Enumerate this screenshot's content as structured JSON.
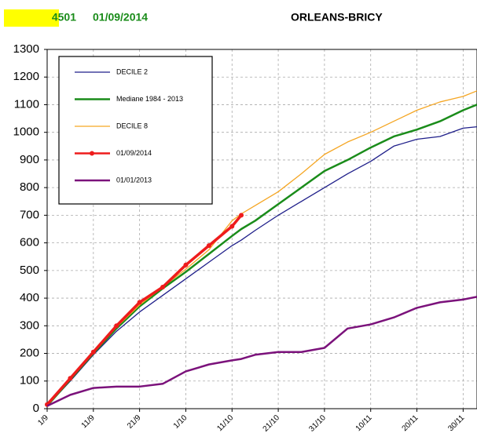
{
  "header": {
    "code": "4501",
    "date": "01/09/2014",
    "station": "ORLEANS-BRICY"
  },
  "chart_data": {
    "type": "line",
    "x": [
      0,
      5,
      10,
      15,
      20,
      25,
      30,
      35,
      40,
      42,
      45,
      50,
      55,
      60,
      65,
      70,
      75,
      80,
      85,
      90,
      93
    ],
    "xlim": [
      0,
      93
    ],
    "xticks": [
      {
        "value": 0,
        "label": "1/9"
      },
      {
        "value": 10,
        "label": "11/9"
      },
      {
        "value": 20,
        "label": "21/9"
      },
      {
        "value": 30,
        "label": "1/10"
      },
      {
        "value": 40,
        "label": "11/10"
      },
      {
        "value": 50,
        "label": "21/10"
      },
      {
        "value": 60,
        "label": "31/10"
      },
      {
        "value": 70,
        "label": "10/11"
      },
      {
        "value": 80,
        "label": "20/11"
      },
      {
        "value": 90,
        "label": "30/11"
      }
    ],
    "ylim": [
      0,
      1300
    ],
    "yticks": [
      0,
      100,
      200,
      300,
      400,
      500,
      600,
      700,
      800,
      900,
      1000,
      1100,
      1200,
      1300
    ],
    "grid": true,
    "legend": "top-left",
    "series": [
      {
        "name": "DECILE 2",
        "color": "#1f1f8a",
        "width": 1.3,
        "values": [
          10,
          100,
          195,
          280,
          350,
          410,
          470,
          530,
          590,
          610,
          645,
          700,
          750,
          800,
          850,
          895,
          950,
          975,
          985,
          1015,
          1020
        ]
      },
      {
        "name": "Mediane 1984 - 2013",
        "color": "#1a8c1a",
        "width": 2.5,
        "values": [
          10,
          105,
          200,
          290,
          370,
          435,
          495,
          560,
          625,
          650,
          680,
          740,
          800,
          860,
          900,
          945,
          985,
          1010,
          1040,
          1080,
          1100
        ]
      },
      {
        "name": "DECILE 8",
        "color": "#f5a623",
        "width": 1.3,
        "values": [
          10,
          108,
          205,
          295,
          375,
          440,
          505,
          575,
          680,
          705,
          735,
          785,
          850,
          920,
          965,
          1000,
          1040,
          1080,
          1110,
          1130,
          1150
        ]
      },
      {
        "name": "01/09/2014",
        "color": "#ee1c1c",
        "width": 3.5,
        "markers": true,
        "values": [
          15,
          110,
          205,
          300,
          385,
          440,
          520,
          590,
          660,
          700,
          null,
          null,
          null,
          null,
          null,
          null,
          null,
          null,
          null,
          null,
          null
        ]
      },
      {
        "name": "01/01/2013",
        "color": "#7b127b",
        "width": 2.5,
        "values": [
          10,
          50,
          75,
          80,
          80,
          90,
          135,
          160,
          175,
          180,
          195,
          205,
          205,
          220,
          290,
          305,
          330,
          365,
          385,
          395,
          405
        ]
      }
    ]
  }
}
